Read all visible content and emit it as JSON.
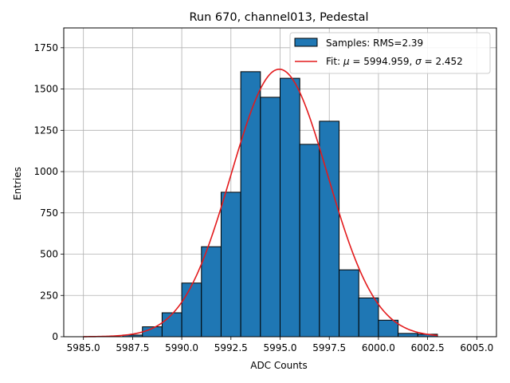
{
  "chart_data": {
    "type": "bar",
    "title": "Run 670, channel013, Pedestal",
    "xlabel": "ADC Counts",
    "ylabel": "Entries",
    "xlim": [
      5984.0,
      6006.0
    ],
    "ylim": [
      0,
      1870
    ],
    "xticks": [
      "5985.0",
      "5987.5",
      "5990.0",
      "5992.5",
      "5995.0",
      "5997.5",
      "6000.0",
      "6002.5",
      "6005.0"
    ],
    "yticks": [
      "0",
      "250",
      "500",
      "750",
      "1000",
      "1250",
      "1500",
      "1750"
    ],
    "grid": true,
    "legend_position": "top-right",
    "colors": {
      "bars": "#1f77b4",
      "bar_edge": "#000000",
      "fit": "#e31a1c",
      "grid": "#b0b0b0"
    },
    "bin_edges": [
      5987,
      5988,
      5989,
      5990,
      5991,
      5992,
      5993,
      5994,
      5995,
      5996,
      5997,
      5998,
      5999,
      6000,
      6001,
      6002,
      6003
    ],
    "values": [
      10,
      60,
      145,
      325,
      545,
      875,
      1605,
      1450,
      1565,
      1165,
      1305,
      405,
      235,
      100,
      20,
      15
    ],
    "series": [
      {
        "name": "Samples: RMS=2.39",
        "type": "histogram"
      },
      {
        "name": "Fit: μ = 5994.959, σ = 2.452",
        "type": "line",
        "mu": 5994.959,
        "sigma": 2.452,
        "amplitude": 1620,
        "x_range": [
          5985.0,
          6003.0
        ]
      }
    ],
    "legend": {
      "samples_prefix": "Samples: RMS=2.39",
      "fit_prefix": "Fit: ",
      "fit_mu_sym": "μ",
      "fit_mu_val": " = 5994.959, ",
      "fit_sigma_sym": "σ",
      "fit_sigma_val": " = 2.452"
    }
  }
}
